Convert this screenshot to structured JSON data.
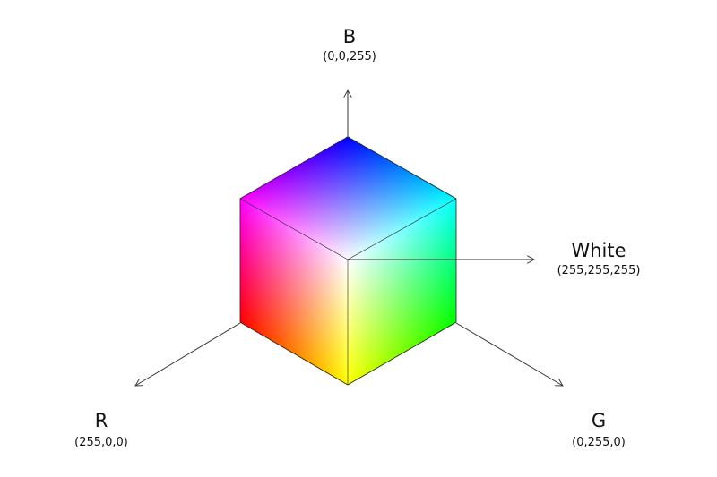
{
  "axes": {
    "b": {
      "name": "B",
      "value": "(0,0,255)"
    },
    "white": {
      "name": "White",
      "value": "(255,255,255)"
    },
    "r": {
      "name": "R",
      "value": "(255,0,0)"
    },
    "g": {
      "name": "G",
      "value": "(0,255,0)"
    }
  },
  "cube_vertex_colors": {
    "top": "#0000ff",
    "upper_left": "#ff00ff",
    "upper_right": "#00ffff",
    "center": "#ffffff",
    "lower_left": "#ff0000",
    "lower_right": "#00ff00",
    "bottom": "#ffff00"
  },
  "line_color": "#333333"
}
